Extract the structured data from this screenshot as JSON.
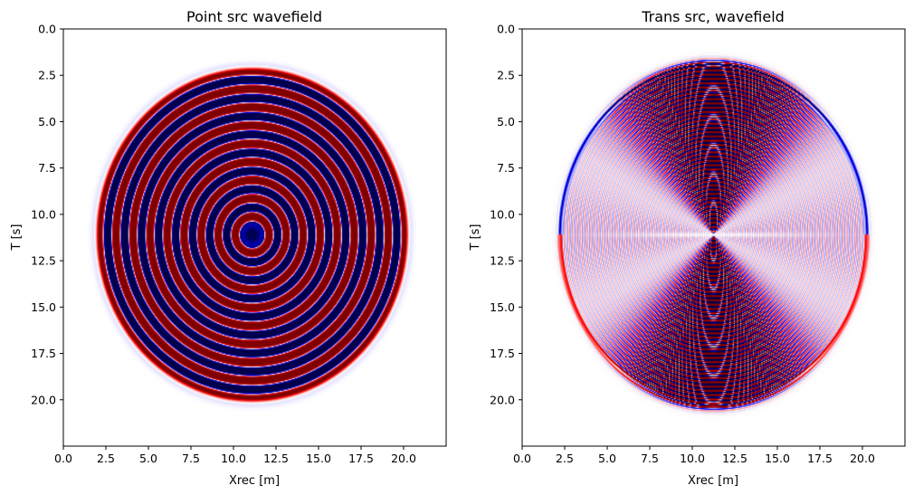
{
  "chart_data": [
    {
      "type": "heatmap",
      "title": "Point src wavefield",
      "xlabel": "Xrec [m]",
      "ylabel": "T [s]",
      "xlim": [
        0,
        22.5
      ],
      "ylim": [
        22.5,
        0
      ],
      "xticks": [
        "0.0",
        "2.5",
        "5.0",
        "7.5",
        "10.0",
        "12.5",
        "15.0",
        "17.5",
        "20.0"
      ],
      "yticks": [
        "0.0",
        "2.5",
        "5.0",
        "7.5",
        "10.0",
        "12.5",
        "15.0",
        "17.5",
        "20.0"
      ],
      "colormap": "seismic",
      "colors": {
        "negative": "#00004d",
        "zero": "#ffffff",
        "positive": "#800000"
      },
      "pattern": "point-source",
      "center": [
        11.1,
        11.1
      ],
      "radius_x": 9.0,
      "radius_y": 8.85
    },
    {
      "type": "heatmap",
      "title": "Trans src, wavefield",
      "xlabel": "Xrec [m]",
      "ylabel": "T [s]",
      "xlim": [
        0,
        22.5
      ],
      "ylim": [
        22.5,
        0
      ],
      "xticks": [
        "0.0",
        "2.5",
        "5.0",
        "7.5",
        "10.0",
        "12.5",
        "15.0",
        "17.5",
        "20.0"
      ],
      "yticks": [
        "0.0",
        "2.5",
        "5.0",
        "7.5",
        "10.0",
        "12.5",
        "15.0",
        "17.5",
        "20.0"
      ],
      "colormap": "seismic",
      "colors": {
        "negative": "#00004d",
        "zero": "#ffffff",
        "positive": "#800000"
      },
      "pattern": "transformed-source",
      "center": [
        11.25,
        11.1
      ],
      "radius_x": 9.15,
      "radius_y": 9.3
    }
  ]
}
